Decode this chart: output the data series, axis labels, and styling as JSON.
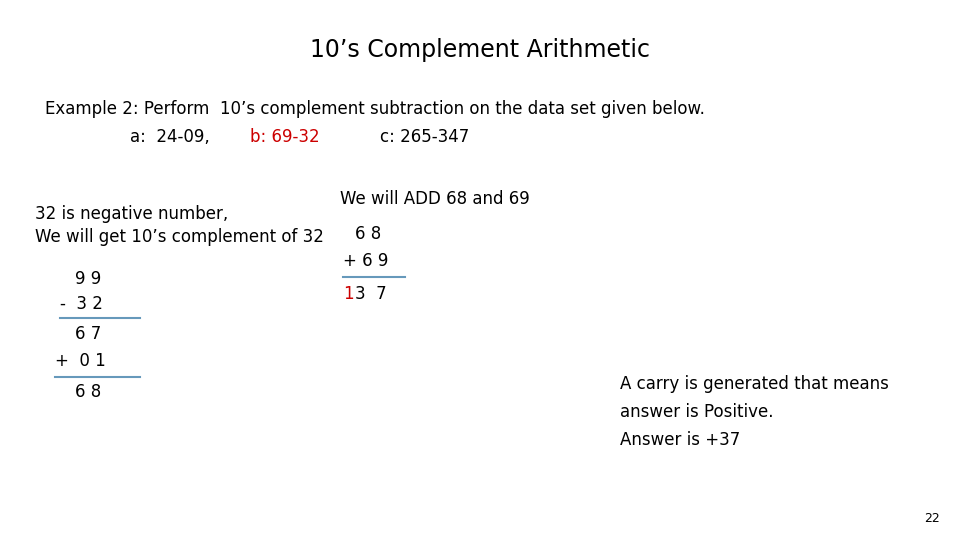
{
  "title": "10’s Complement Arithmetic",
  "bg_color": "#ffffff",
  "title_color": "#000000",
  "title_fontsize": 17,
  "example_line1": "Example 2: Perform  10’s complement subtraction on the data set given below.",
  "example_line2_a": "a:  24-09,",
  "example_line2_b": "b: 69-32",
  "example_line2_c": "c: 265-347",
  "red_color": "#cc0000",
  "black_color": "#000000",
  "line_color": "#6699bb",
  "text_fontsize": 12,
  "small_fontsize": 10,
  "page_number": "22"
}
